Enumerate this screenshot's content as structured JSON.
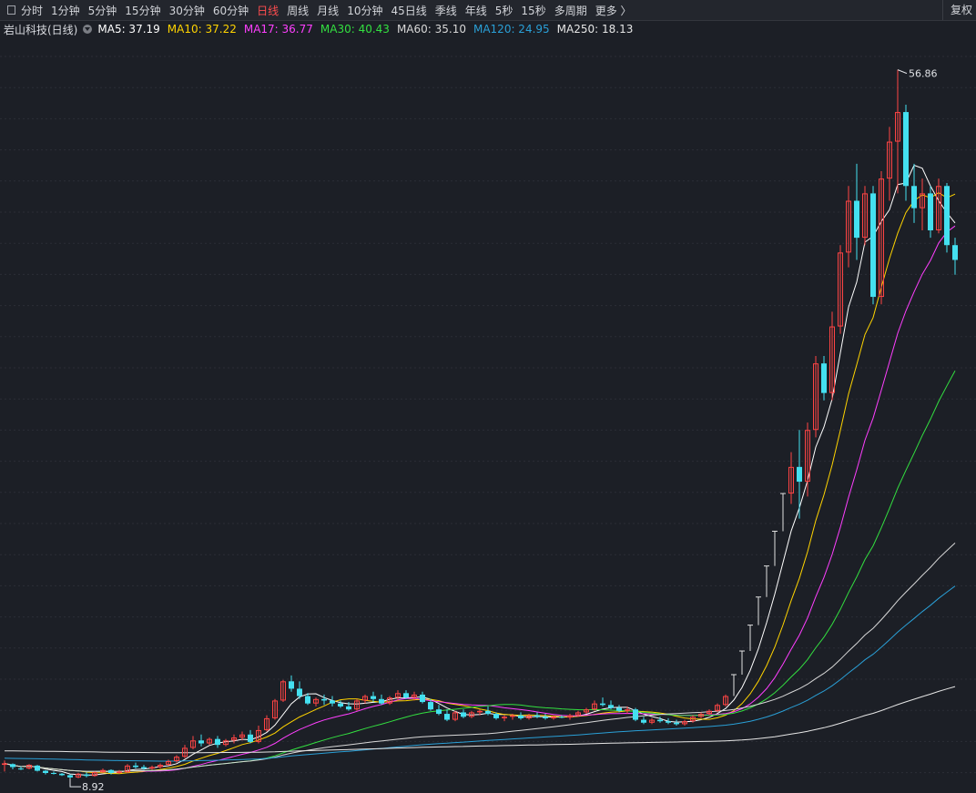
{
  "toolbar": {
    "periods": [
      "分时",
      "1分钟",
      "5分钟",
      "15分钟",
      "30分钟",
      "60分钟",
      "日线",
      "周线",
      "月线",
      "10分钟",
      "45日线",
      "季线",
      "年线",
      "5秒",
      "15秒",
      "多周期",
      "更多 〉"
    ],
    "active": "日线",
    "right_label": "复权"
  },
  "legend": {
    "title": "岩山科技(日线)",
    "ma": [
      {
        "text": "MA5: 37.19",
        "color": "#ffffff"
      },
      {
        "text": "MA10: 37.22",
        "color": "#ffd400"
      },
      {
        "text": "MA17: 36.77",
        "color": "#ff3fff"
      },
      {
        "text": "MA30: 40.43",
        "color": "#33e040"
      },
      {
        "text": "MA60: 35.10",
        "color": "#d8d8d8"
      },
      {
        "text": "MA120: 24.95",
        "color": "#2a9fd6"
      },
      {
        "text": "MA250: 18.13",
        "color": "#e6e6e6"
      }
    ]
  },
  "chart_data": {
    "type": "candlestick",
    "x": "trading days",
    "ylim": [
      8.5,
      58.5
    ],
    "high_label": "56.86",
    "low_label": "8.92",
    "colors": {
      "up": "#ff4444",
      "down": "#44e0f0",
      "flat": "#e0e0e0",
      "background": "#1c1f26"
    },
    "ohlc": [
      [
        9.85,
        10.15,
        9.4,
        9.95
      ],
      [
        9.9,
        9.95,
        9.55,
        9.7
      ],
      [
        9.6,
        9.75,
        9.5,
        9.55
      ],
      [
        9.6,
        9.9,
        9.55,
        9.85
      ],
      [
        9.8,
        9.85,
        9.4,
        9.45
      ],
      [
        9.45,
        9.5,
        9.2,
        9.3
      ],
      [
        9.3,
        9.4,
        9.2,
        9.25
      ],
      [
        9.25,
        9.3,
        9.1,
        9.15
      ],
      [
        9.15,
        9.2,
        8.92,
        9.0
      ],
      [
        9.0,
        9.3,
        8.95,
        9.25
      ],
      [
        9.2,
        9.35,
        9.0,
        9.1
      ],
      [
        9.1,
        9.4,
        9.05,
        9.35
      ],
      [
        9.35,
        9.6,
        9.3,
        9.5
      ],
      [
        9.5,
        9.55,
        9.2,
        9.3
      ],
      [
        9.3,
        9.5,
        9.25,
        9.4
      ],
      [
        9.35,
        9.9,
        9.3,
        9.8
      ],
      [
        9.8,
        10.0,
        9.6,
        9.7
      ],
      [
        9.7,
        9.85,
        9.5,
        9.6
      ],
      [
        9.6,
        9.8,
        9.5,
        9.7
      ],
      [
        9.7,
        9.95,
        9.6,
        9.85
      ],
      [
        9.85,
        10.2,
        9.8,
        10.1
      ],
      [
        10.1,
        10.5,
        10.0,
        10.4
      ],
      [
        10.4,
        11.2,
        10.3,
        11.0
      ],
      [
        11.0,
        11.8,
        10.9,
        11.5
      ],
      [
        11.5,
        11.9,
        11.1,
        11.3
      ],
      [
        11.3,
        11.7,
        11.2,
        11.6
      ],
      [
        11.6,
        11.8,
        11.0,
        11.2
      ],
      [
        11.2,
        11.6,
        11.1,
        11.5
      ],
      [
        11.5,
        11.9,
        11.3,
        11.7
      ],
      [
        11.7,
        12.1,
        11.5,
        11.9
      ],
      [
        11.9,
        12.2,
        11.3,
        11.4
      ],
      [
        11.4,
        12.5,
        11.3,
        12.2
      ],
      [
        12.2,
        13.2,
        12.1,
        13.0
      ],
      [
        13.0,
        14.3,
        12.9,
        14.2
      ],
      [
        14.2,
        15.6,
        14.1,
        15.5
      ],
      [
        15.5,
        15.9,
        14.8,
        15.0
      ],
      [
        15.0,
        15.5,
        14.3,
        14.5
      ],
      [
        14.5,
        14.7,
        13.9,
        14.0
      ],
      [
        14.0,
        14.4,
        13.8,
        14.3
      ],
      [
        14.3,
        14.6,
        13.9,
        14.2
      ],
      [
        14.2,
        14.5,
        13.8,
        14.0
      ],
      [
        14.0,
        14.2,
        13.7,
        13.8
      ],
      [
        13.8,
        14.1,
        13.5,
        13.6
      ],
      [
        13.6,
        14.3,
        13.5,
        14.2
      ],
      [
        14.2,
        14.6,
        14.0,
        14.5
      ],
      [
        14.5,
        14.8,
        14.1,
        14.3
      ],
      [
        14.3,
        14.6,
        13.9,
        14.0
      ],
      [
        14.0,
        14.5,
        13.9,
        14.4
      ],
      [
        14.4,
        14.9,
        14.2,
        14.7
      ],
      [
        14.7,
        14.9,
        14.3,
        14.4
      ],
      [
        14.4,
        14.8,
        14.2,
        14.6
      ],
      [
        14.6,
        14.8,
        14.0,
        14.1
      ],
      [
        14.1,
        14.3,
        13.5,
        13.6
      ],
      [
        13.6,
        13.9,
        13.2,
        13.3
      ],
      [
        13.3,
        13.6,
        12.8,
        12.9
      ],
      [
        12.9,
        13.5,
        12.8,
        13.4
      ],
      [
        13.4,
        13.6,
        13.0,
        13.1
      ],
      [
        13.1,
        13.5,
        13.0,
        13.4
      ],
      [
        13.4,
        13.6,
        13.2,
        13.5
      ],
      [
        13.5,
        13.8,
        13.2,
        13.3
      ],
      [
        13.3,
        13.4,
        12.9,
        13.0
      ],
      [
        13.0,
        13.2,
        12.8,
        13.1
      ],
      [
        13.1,
        13.3,
        12.9,
        13.2
      ],
      [
        13.2,
        13.4,
        12.9,
        13.0
      ],
      [
        13.0,
        13.3,
        12.9,
        13.2
      ],
      [
        13.2,
        13.4,
        13.0,
        13.1
      ],
      [
        13.1,
        13.3,
        12.9,
        13.0
      ],
      [
        13.0,
        13.2,
        12.9,
        13.1
      ],
      [
        13.1,
        13.2,
        13.0,
        13.05
      ],
      [
        13.05,
        13.3,
        12.9,
        13.2
      ],
      [
        13.2,
        13.5,
        13.1,
        13.4
      ],
      [
        13.4,
        13.7,
        13.3,
        13.6
      ],
      [
        13.6,
        14.2,
        13.5,
        14.0
      ],
      [
        14.0,
        14.4,
        13.8,
        13.9
      ],
      [
        13.9,
        14.2,
        13.6,
        13.7
      ],
      [
        13.7,
        13.9,
        13.4,
        13.5
      ],
      [
        13.5,
        13.8,
        13.3,
        13.6
      ],
      [
        13.6,
        13.7,
        12.8,
        12.9
      ],
      [
        12.9,
        13.1,
        12.6,
        12.7
      ],
      [
        12.7,
        13.0,
        12.6,
        12.9
      ],
      [
        12.9,
        13.1,
        12.7,
        12.8
      ],
      [
        12.8,
        13.0,
        12.6,
        12.7
      ],
      [
        12.7,
        12.9,
        12.5,
        12.6
      ],
      [
        12.6,
        12.9,
        12.5,
        12.8
      ],
      [
        12.8,
        13.2,
        12.7,
        13.1
      ],
      [
        13.1,
        13.4,
        13.0,
        13.3
      ],
      [
        13.3,
        13.6,
        13.2,
        13.5
      ],
      [
        13.5,
        14.0,
        13.4,
        13.9
      ],
      [
        13.9,
        14.6,
        13.8,
        14.5
      ],
      [
        14.5,
        15.95,
        14.5,
        15.95
      ],
      [
        15.95,
        17.55,
        15.95,
        17.55
      ],
      [
        17.55,
        19.3,
        17.55,
        19.3
      ],
      [
        19.3,
        21.2,
        19.3,
        21.2
      ],
      [
        21.2,
        23.3,
        21.2,
        23.3
      ],
      [
        23.3,
        25.65,
        23.3,
        25.65
      ],
      [
        25.65,
        28.2,
        25.65,
        28.2
      ],
      [
        28.2,
        31.0,
        27.5,
        30.0
      ],
      [
        30.0,
        32.5,
        26.5,
        29.0
      ],
      [
        29.0,
        33.0,
        28.0,
        32.5
      ],
      [
        32.5,
        37.5,
        32.0,
        37.0
      ],
      [
        37.0,
        37.5,
        34.5,
        35.0
      ],
      [
        35.0,
        40.5,
        34.5,
        39.5
      ],
      [
        39.5,
        45.0,
        39.0,
        44.5
      ],
      [
        44.5,
        49.0,
        43.5,
        48.0
      ],
      [
        48.0,
        50.5,
        44.0,
        45.5
      ],
      [
        45.5,
        49.0,
        45.0,
        48.5
      ],
      [
        48.5,
        49.0,
        41.0,
        41.5
      ],
      [
        41.5,
        50.0,
        41.0,
        49.5
      ],
      [
        49.5,
        53.0,
        48.0,
        52.0
      ],
      [
        52.0,
        56.86,
        48.5,
        54.0
      ],
      [
        54.0,
        54.5,
        48.0,
        49.0
      ],
      [
        49.0,
        50.5,
        46.5,
        47.5
      ],
      [
        47.5,
        49.5,
        46.0,
        48.5
      ],
      [
        48.5,
        49.0,
        45.5,
        46.0
      ],
      [
        46.0,
        49.5,
        45.8,
        49.0
      ],
      [
        49.0,
        49.2,
        44.5,
        45.0
      ],
      [
        45.0,
        45.5,
        43.0,
        44.0
      ]
    ]
  }
}
